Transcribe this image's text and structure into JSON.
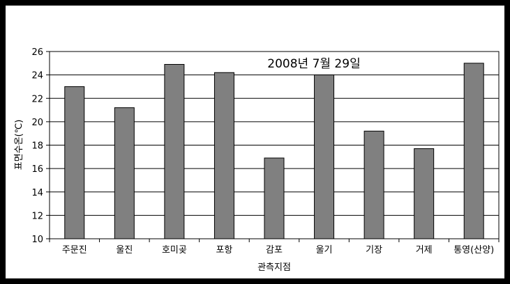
{
  "chart_data": {
    "type": "bar",
    "title": "",
    "annotation": "2008년 7월 29일",
    "xlabel": "관측지점",
    "ylabel": "표면수온(℃)",
    "ylim": [
      10,
      26
    ],
    "y_ticks": [
      10,
      12,
      14,
      16,
      18,
      20,
      22,
      24,
      26
    ],
    "grid": true,
    "legend": "none",
    "categories": [
      "주문진",
      "울진",
      "호미곶",
      "포항",
      "감포",
      "울기",
      "기장",
      "거제",
      "통영(산양)"
    ],
    "values": [
      23.0,
      21.2,
      24.9,
      24.2,
      16.9,
      24.0,
      19.2,
      17.7,
      25.0
    ],
    "colors": {
      "bar": "#808080",
      "bar_stroke": "#000000",
      "frame": "#000000",
      "grid": "#000000"
    }
  }
}
